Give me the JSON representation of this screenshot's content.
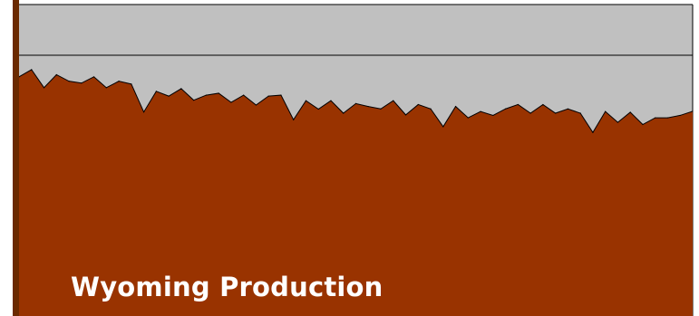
{
  "colors": {
    "plot_background": "#c0c0c0",
    "area_fill": "#993300",
    "left_bar": "#6b2a00",
    "title": "#ffffff"
  },
  "chart_data": {
    "type": "area",
    "title": "Wyoming Production",
    "xlabel": "",
    "ylabel": "",
    "ylim": [
      0,
      100
    ],
    "grid": true,
    "gridlines": [
      0,
      100,
      122
    ],
    "series": [
      {
        "values": [
          99.3,
          102.3,
          94.8,
          100.2,
          97.5,
          96.7,
          99.3,
          94.8,
          97.5,
          96.3,
          84.7,
          93.3,
          91.3,
          94.4,
          89.6,
          91.7,
          92.5,
          88.7,
          91.7,
          87.6,
          91.3,
          91.7,
          81.5,
          89.4,
          85.9,
          89.4,
          84.2,
          88.2,
          87.0,
          86.0,
          89.4,
          83.5,
          87.8,
          86.0,
          78.6,
          87.0,
          82.3,
          84.9,
          83.3,
          86.0,
          87.8,
          84.2,
          87.8,
          84.2,
          86.0,
          84.2,
          76.2,
          84.9,
          80.4,
          84.6,
          79.5,
          82.3,
          82.3,
          83.3,
          85.0
        ]
      }
    ]
  }
}
